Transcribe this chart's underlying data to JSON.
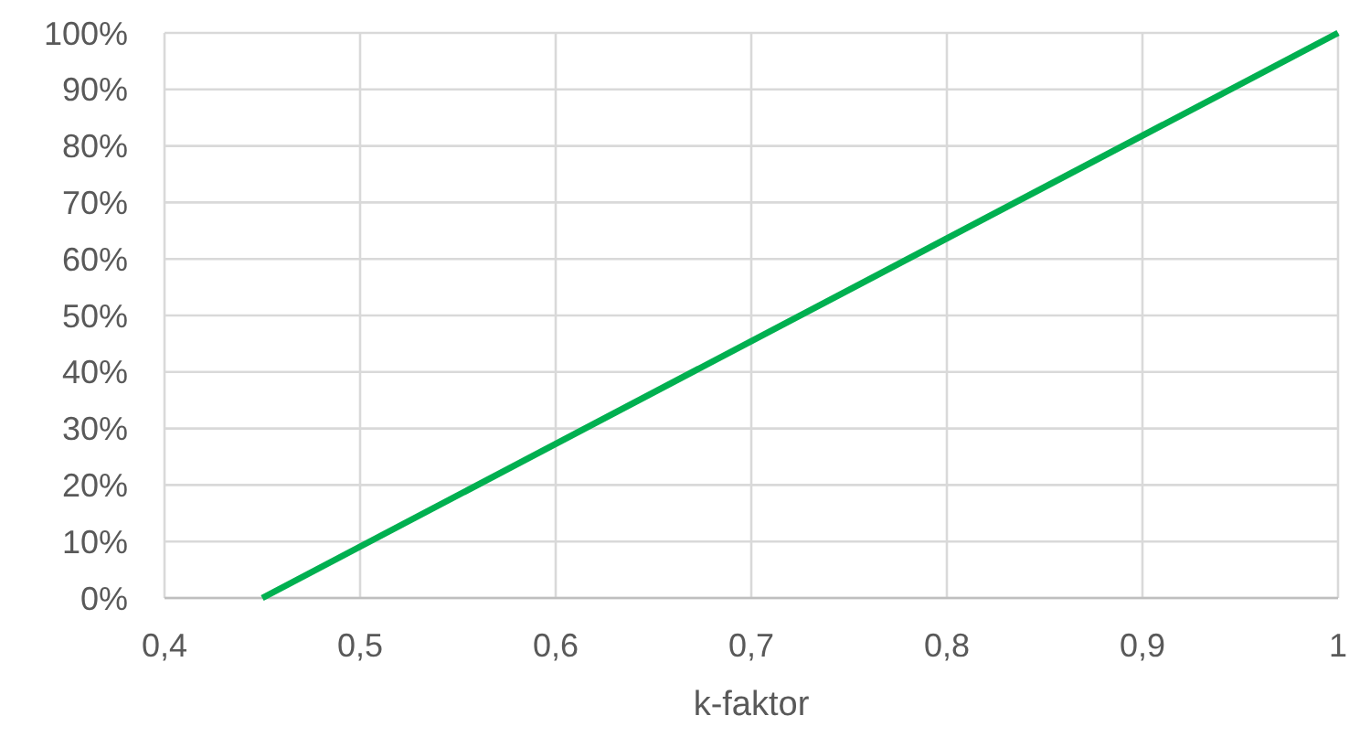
{
  "chart_data": {
    "type": "line",
    "xlabel": "k-faktor",
    "x": [
      0.45,
      1
    ],
    "series": [
      {
        "color": "#00b050",
        "values": [
          0,
          100
        ]
      }
    ],
    "xlim": [
      0.4,
      1
    ],
    "xticks": [
      {
        "value": 0.4,
        "label": "0,4"
      },
      {
        "value": 0.5,
        "label": "0,5"
      },
      {
        "value": 0.6,
        "label": "0,6"
      },
      {
        "value": 0.7,
        "label": "0,7"
      },
      {
        "value": 0.8,
        "label": "0,8"
      },
      {
        "value": 0.9,
        "label": "0,9"
      },
      1
    ],
    "ylim": [
      0,
      100
    ],
    "yticks": [
      {
        "value": 0,
        "label": "0%"
      },
      {
        "value": 10,
        "label": "10%"
      },
      {
        "value": 20,
        "label": "20%"
      },
      {
        "value": 30,
        "label": "30%"
      },
      {
        "value": 40,
        "label": "40%"
      },
      {
        "value": 50,
        "label": "50%"
      },
      {
        "value": 60,
        "label": "60%"
      },
      {
        "value": 70,
        "label": "70%"
      },
      {
        "value": 80,
        "label": "80%"
      },
      {
        "value": 90,
        "label": "90%"
      },
      {
        "value": 100,
        "label": "100%"
      }
    ],
    "grid": true,
    "marker": "none",
    "line_style": "solid"
  }
}
